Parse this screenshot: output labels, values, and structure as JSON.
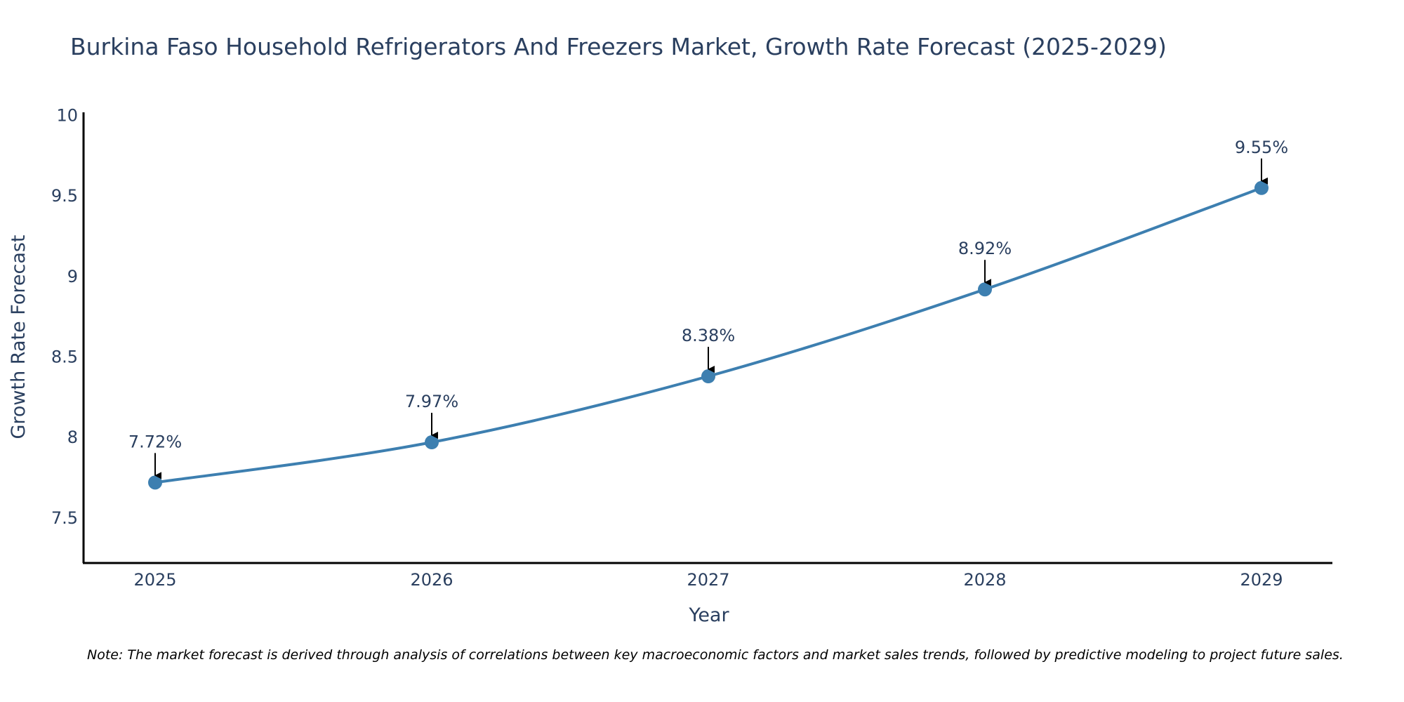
{
  "chart_data": {
    "type": "line",
    "title": "Burkina Faso Household Refrigerators And Freezers Market, Growth Rate Forecast (2025-2029)",
    "xlabel": "Year",
    "ylabel": "Growth Rate Forecast",
    "categories": [
      "2025",
      "2026",
      "2027",
      "2028",
      "2029"
    ],
    "values": [
      7.72,
      7.97,
      8.38,
      8.92,
      9.55
    ],
    "data_labels": [
      "7.72%",
      "7.97%",
      "8.38%",
      "8.92%",
      "9.55%"
    ],
    "ylim": [
      7.22,
      10.02
    ],
    "yticks": [
      7.5,
      8,
      8.5,
      9,
      9.5,
      10
    ],
    "ytick_labels": [
      "7.5",
      "8",
      "8.5",
      "9",
      "9.5",
      "10"
    ],
    "grid": false,
    "line_shape": "spline",
    "line_color": "#3d7fb0",
    "marker_color": "#3d7fb0",
    "annotation_arrow_color": "#000000",
    "note": "Note: The market forecast is derived through analysis of correlations between key macroeconomic factors and market sales trends, followed by predictive modeling to project future sales."
  }
}
